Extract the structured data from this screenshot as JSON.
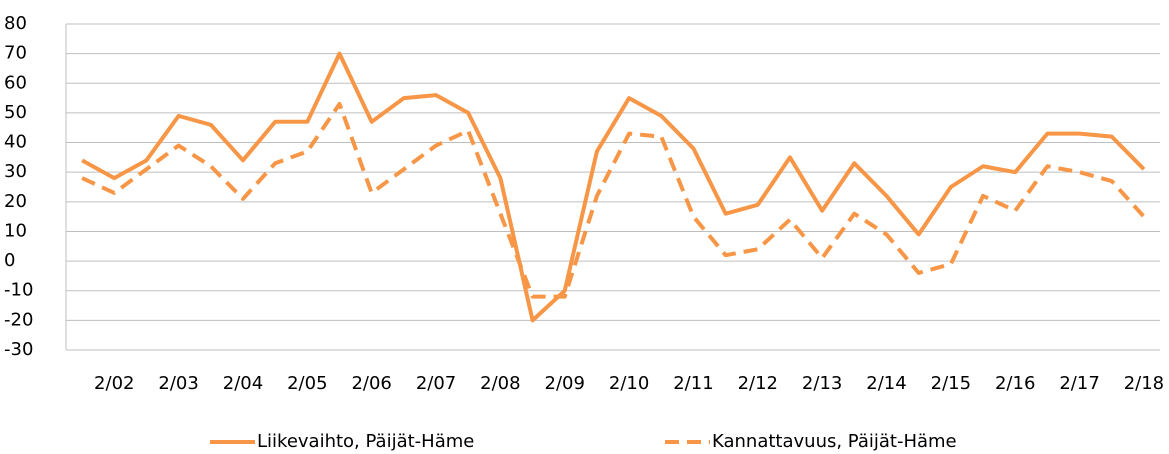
{
  "chart_data": {
    "type": "line",
    "categories": [
      null,
      "2/02",
      null,
      "2/03",
      null,
      "2/04",
      null,
      "2/05",
      null,
      "2/06",
      null,
      "2/07",
      null,
      "2/08",
      null,
      "2/09",
      null,
      "2/10",
      null,
      "2/11",
      null,
      "2/12",
      null,
      "2/13",
      null,
      "2/14",
      null,
      "2/15",
      null,
      "2/16",
      null,
      "2/17",
      null,
      "2/18"
    ],
    "series": [
      {
        "name": "Liikevaihto, Päijät-Häme",
        "color": "#f79646",
        "dash": false,
        "values": [
          34,
          28,
          34,
          49,
          46,
          34,
          47,
          47,
          70,
          47,
          55,
          56,
          50,
          28,
          -20,
          -10,
          37,
          55,
          49,
          38,
          16,
          19,
          35,
          17,
          33,
          22,
          9,
          25,
          32,
          30,
          43,
          43,
          42,
          31
        ]
      },
      {
        "name": "Kannattavuus, Päijät-Häme",
        "color": "#f79646",
        "dash": true,
        "values": [
          28,
          23,
          31,
          39,
          32,
          21,
          33,
          37,
          53,
          23,
          31,
          39,
          44,
          16,
          -12,
          -12,
          22,
          43,
          42,
          15,
          2,
          4,
          14,
          1,
          16,
          9,
          -4,
          -1,
          22,
          17,
          32,
          30,
          27,
          15
        ]
      }
    ],
    "ylim": [
      -30,
      80
    ],
    "yticks": [
      -30,
      -20,
      -10,
      0,
      10,
      20,
      30,
      40,
      50,
      60,
      70,
      80
    ],
    "grid": true
  }
}
